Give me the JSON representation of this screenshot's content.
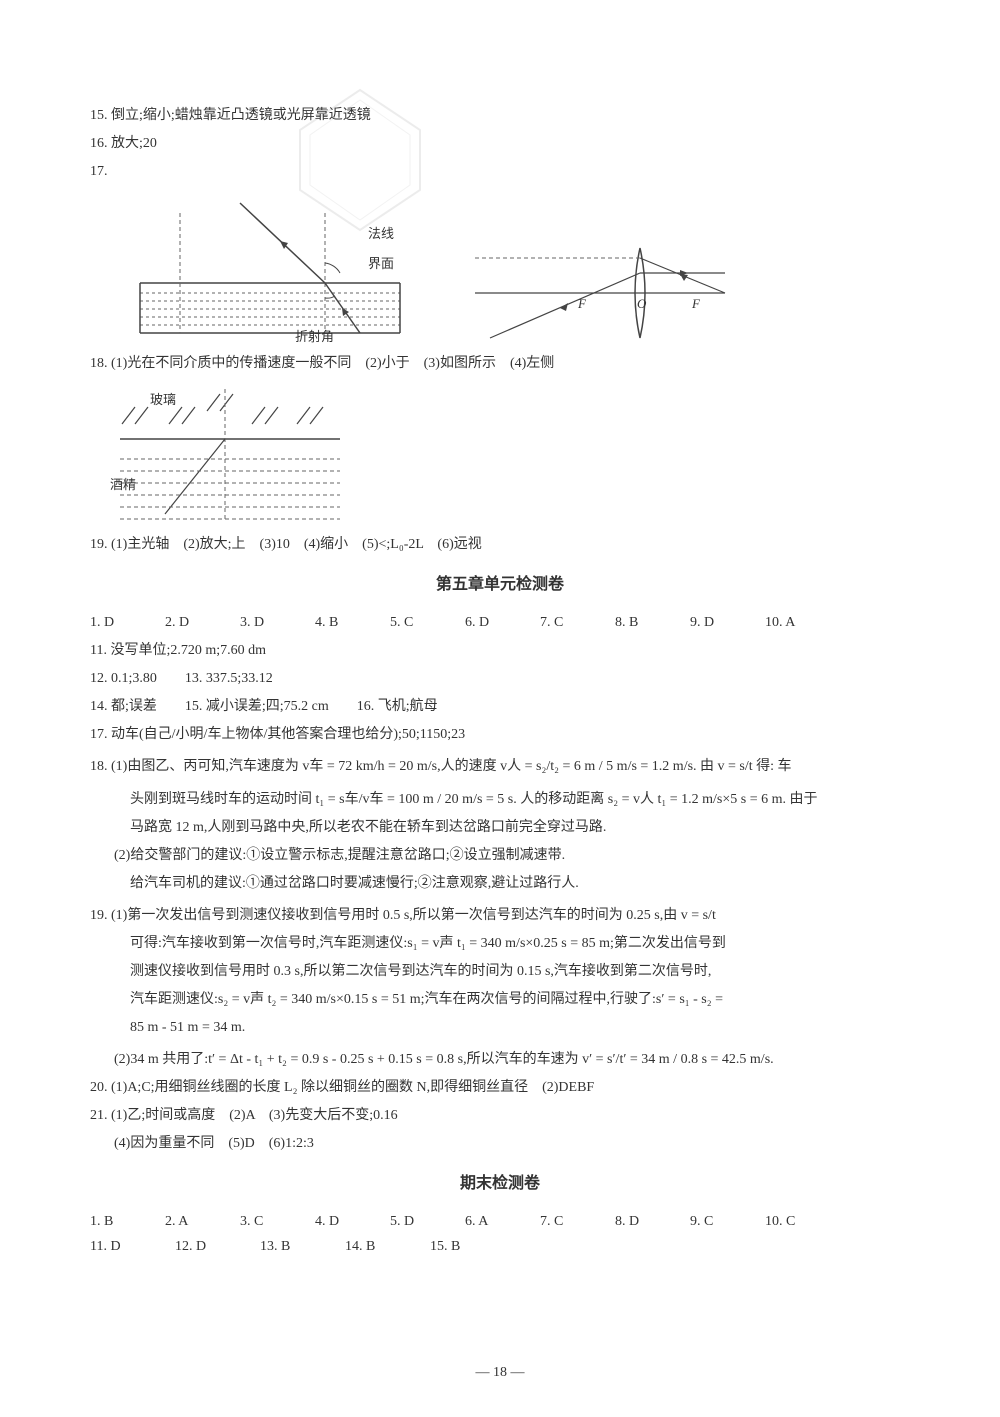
{
  "watermark": {
    "opacity": 0.15
  },
  "q15": {
    "text": "15. 倒立;缩小;蜡烛靠近凸透镜或光屏靠近透镜"
  },
  "q16": {
    "text": "16. 放大;20"
  },
  "q17": {
    "label": "17.",
    "diagram1": {
      "labels": {
        "jiemian": "界面",
        "faxian": "法线",
        "zheshejiao": "折射角"
      },
      "colors": {
        "line": "#444444",
        "dash": "#666666"
      }
    },
    "diagram2": {
      "labels": {
        "F": "F",
        "O": "O"
      },
      "colors": {
        "line": "#444444",
        "dash": "#666666"
      }
    }
  },
  "q18": {
    "text": "18. (1)光在不同介质中的传播速度一般不同　(2)小于　(3)如图所示　(4)左侧",
    "diagram": {
      "labels": {
        "boli": "玻璃",
        "jiujing": "酒精"
      },
      "colors": {
        "line": "#444444",
        "dash": "#666666"
      }
    }
  },
  "q19_chapter": {
    "text": "19. (1)主光轴　(2)放大;上　(3)10　(4)缩小　(5)<;L₀-2L　(6)远视"
  },
  "ch5": {
    "title": "第五章单元检测卷",
    "mc": [
      {
        "n": "1.",
        "a": "D"
      },
      {
        "n": "2.",
        "a": "D"
      },
      {
        "n": "3.",
        "a": "D"
      },
      {
        "n": "4.",
        "a": "B"
      },
      {
        "n": "5.",
        "a": "C"
      },
      {
        "n": "6.",
        "a": "D"
      },
      {
        "n": "7.",
        "a": "C"
      },
      {
        "n": "8.",
        "a": "B"
      },
      {
        "n": "9.",
        "a": "D"
      },
      {
        "n": "10.",
        "a": "A"
      }
    ],
    "q11": "11. 没写单位;2.720 m;7.60 dm",
    "q12_13": "12. 0.1;3.80　　13. 337.5;33.12",
    "q14_16": "14. 都;误差　　15. 减小误差;四;75.2 cm　　16. 飞机;航母",
    "q17": "17. 动车(自己/小明/车上物体/其他答案合理也给分);50;1150;23",
    "q18_1a": "18. (1)由图乙、丙可知,汽车速度为 v车 = 72 km/h = 20 m/s,人的速度 v人 = s₂/t₂ = 6 m / 5 m/s = 1.2 m/s. 由 v = s/t 得: 车",
    "q18_1b": "头刚到斑马线时车的运动时间 t₁ = s车/v车 = 100 m / 20 m/s = 5 s. 人的移动距离 s₂ = v人 t₁ = 1.2 m/s×5 s = 6 m. 由于",
    "q18_1c": "马路宽 12 m,人刚到马路中央,所以老农不能在轿车到达岔路口前完全穿过马路.",
    "q18_2a": "(2)给交警部门的建议:①设立警示标志,提醒注意岔路口;②设立强制减速带.",
    "q18_2b": "给汽车司机的建议:①通过岔路口时要减速慢行;②注意观察,避让过路行人.",
    "q19_1a": "19. (1)第一次发出信号到测速仪接收到信号用时 0.5 s,所以第一次信号到达汽车的时间为 0.25 s,由 v = s/t",
    "q19_1b": "可得:汽车接收到第一次信号时,汽车距测速仪:s₁ = v声 t₁ = 340 m/s×0.25 s = 85 m;第二次发出信号到",
    "q19_1c": "测速仪接收到信号用时 0.3 s,所以第二次信号到达汽车的时间为 0.15 s,汽车接收到第二次信号时,",
    "q19_1d": "汽车距测速仪:s₂ = v声 t₂ = 340 m/s×0.15 s = 51 m;汽车在两次信号的间隔过程中,行驶了:s′ = s₁ - s₂ =",
    "q19_1e": "85 m - 51 m = 34 m.",
    "q19_2": "(2)34 m 共用了:t′ = Δt - t₁ + t₂ = 0.9 s - 0.25 s + 0.15 s = 0.8 s,所以汽车的车速为 v′ = s′/t′ = 34 m / 0.8 s = 42.5 m/s.",
    "q20": "20. (1)A;C;用细铜丝线圈的长度 L₂ 除以细铜丝的圈数 N,即得细铜丝直径　(2)DEBF",
    "q21a": "21. (1)乙;时间或高度　(2)A　(3)先变大后不变;0.16",
    "q21b": "(4)因为重量不同　(5)D　(6)1:2:3"
  },
  "final": {
    "title": "期末检测卷",
    "mc1": [
      {
        "n": "1.",
        "a": "B"
      },
      {
        "n": "2.",
        "a": "A"
      },
      {
        "n": "3.",
        "a": "C"
      },
      {
        "n": "4.",
        "a": "D"
      },
      {
        "n": "5.",
        "a": "D"
      },
      {
        "n": "6.",
        "a": "A"
      },
      {
        "n": "7.",
        "a": "C"
      },
      {
        "n": "8.",
        "a": "D"
      },
      {
        "n": "9.",
        "a": "C"
      },
      {
        "n": "10.",
        "a": "C"
      }
    ],
    "mc2": [
      {
        "n": "11.",
        "a": "D"
      },
      {
        "n": "12.",
        "a": "D"
      },
      {
        "n": "13.",
        "a": "B"
      },
      {
        "n": "14.",
        "a": "B"
      },
      {
        "n": "15.",
        "a": "B"
      }
    ]
  },
  "pagenum": "— 18 —"
}
